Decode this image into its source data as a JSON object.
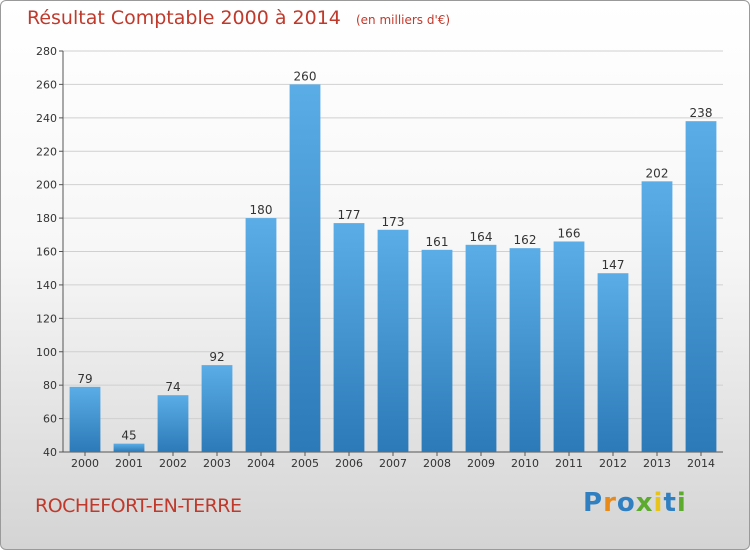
{
  "chart_data": {
    "type": "bar",
    "title": "Résultat Comptable 2000 à 2014",
    "subtitle": "(en milliers d'€)",
    "categories": [
      "2000",
      "2001",
      "2002",
      "2003",
      "2004",
      "2005",
      "2006",
      "2007",
      "2008",
      "2009",
      "2010",
      "2011",
      "2012",
      "2013",
      "2014"
    ],
    "values": [
      79,
      45,
      74,
      92,
      180,
      260,
      177,
      173,
      161,
      164,
      162,
      166,
      147,
      202,
      238
    ],
    "ylim": [
      40,
      280
    ],
    "yticks": [
      40,
      60,
      80,
      100,
      120,
      140,
      160,
      180,
      200,
      220,
      240,
      260,
      280
    ],
    "xlabel": "",
    "ylabel": "",
    "grid": true,
    "bar_color_top": "#5aade6",
    "bar_color_bottom": "#2c7ab8"
  },
  "location": "ROCHEFORT-EN-TERRE",
  "logo": {
    "text": "Proxiti",
    "letters": [
      {
        "ch": "P",
        "color": "#2f7fc1"
      },
      {
        "ch": "r",
        "color": "#e88a1a"
      },
      {
        "ch": "o",
        "color": "#2f7fc1"
      },
      {
        "ch": "x",
        "color": "#5cab2e"
      },
      {
        "ch": "i",
        "color": "#e8c31a"
      },
      {
        "ch": "t",
        "color": "#2f7fc1"
      },
      {
        "ch": "i",
        "color": "#5cab2e"
      }
    ]
  }
}
